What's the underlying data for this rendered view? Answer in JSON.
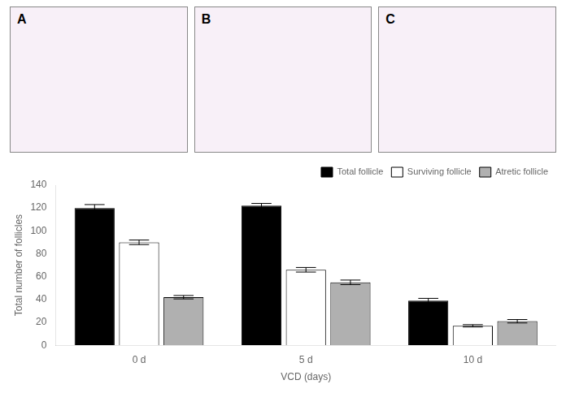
{
  "chart_data": {
    "type": "bar",
    "categories": [
      "0 d",
      "5 d",
      "10 d"
    ],
    "series": [
      {
        "name": "Total follicle",
        "color": "#000000",
        "values": [
          120,
          122,
          39
        ],
        "errors": [
          3,
          2,
          2
        ]
      },
      {
        "name": "Surviving follicle",
        "color": "#ffffff",
        "values": [
          90,
          66,
          17
        ],
        "errors": [
          2,
          2,
          1
        ]
      },
      {
        "name": "Atretic follicle",
        "color": "#b0b0b0",
        "values": [
          42,
          55,
          21
        ],
        "errors": [
          1.5,
          2,
          1.5
        ]
      }
    ],
    "xlabel": "VCD (days)",
    "ylabel": "Total number of follicles",
    "ylim": [
      0,
      140
    ],
    "yticks": [
      0,
      20,
      40,
      60,
      80,
      100,
      120,
      140
    ],
    "grid": false,
    "legend": "upper right",
    "annotations": [
      "A",
      "B",
      "C"
    ]
  }
}
